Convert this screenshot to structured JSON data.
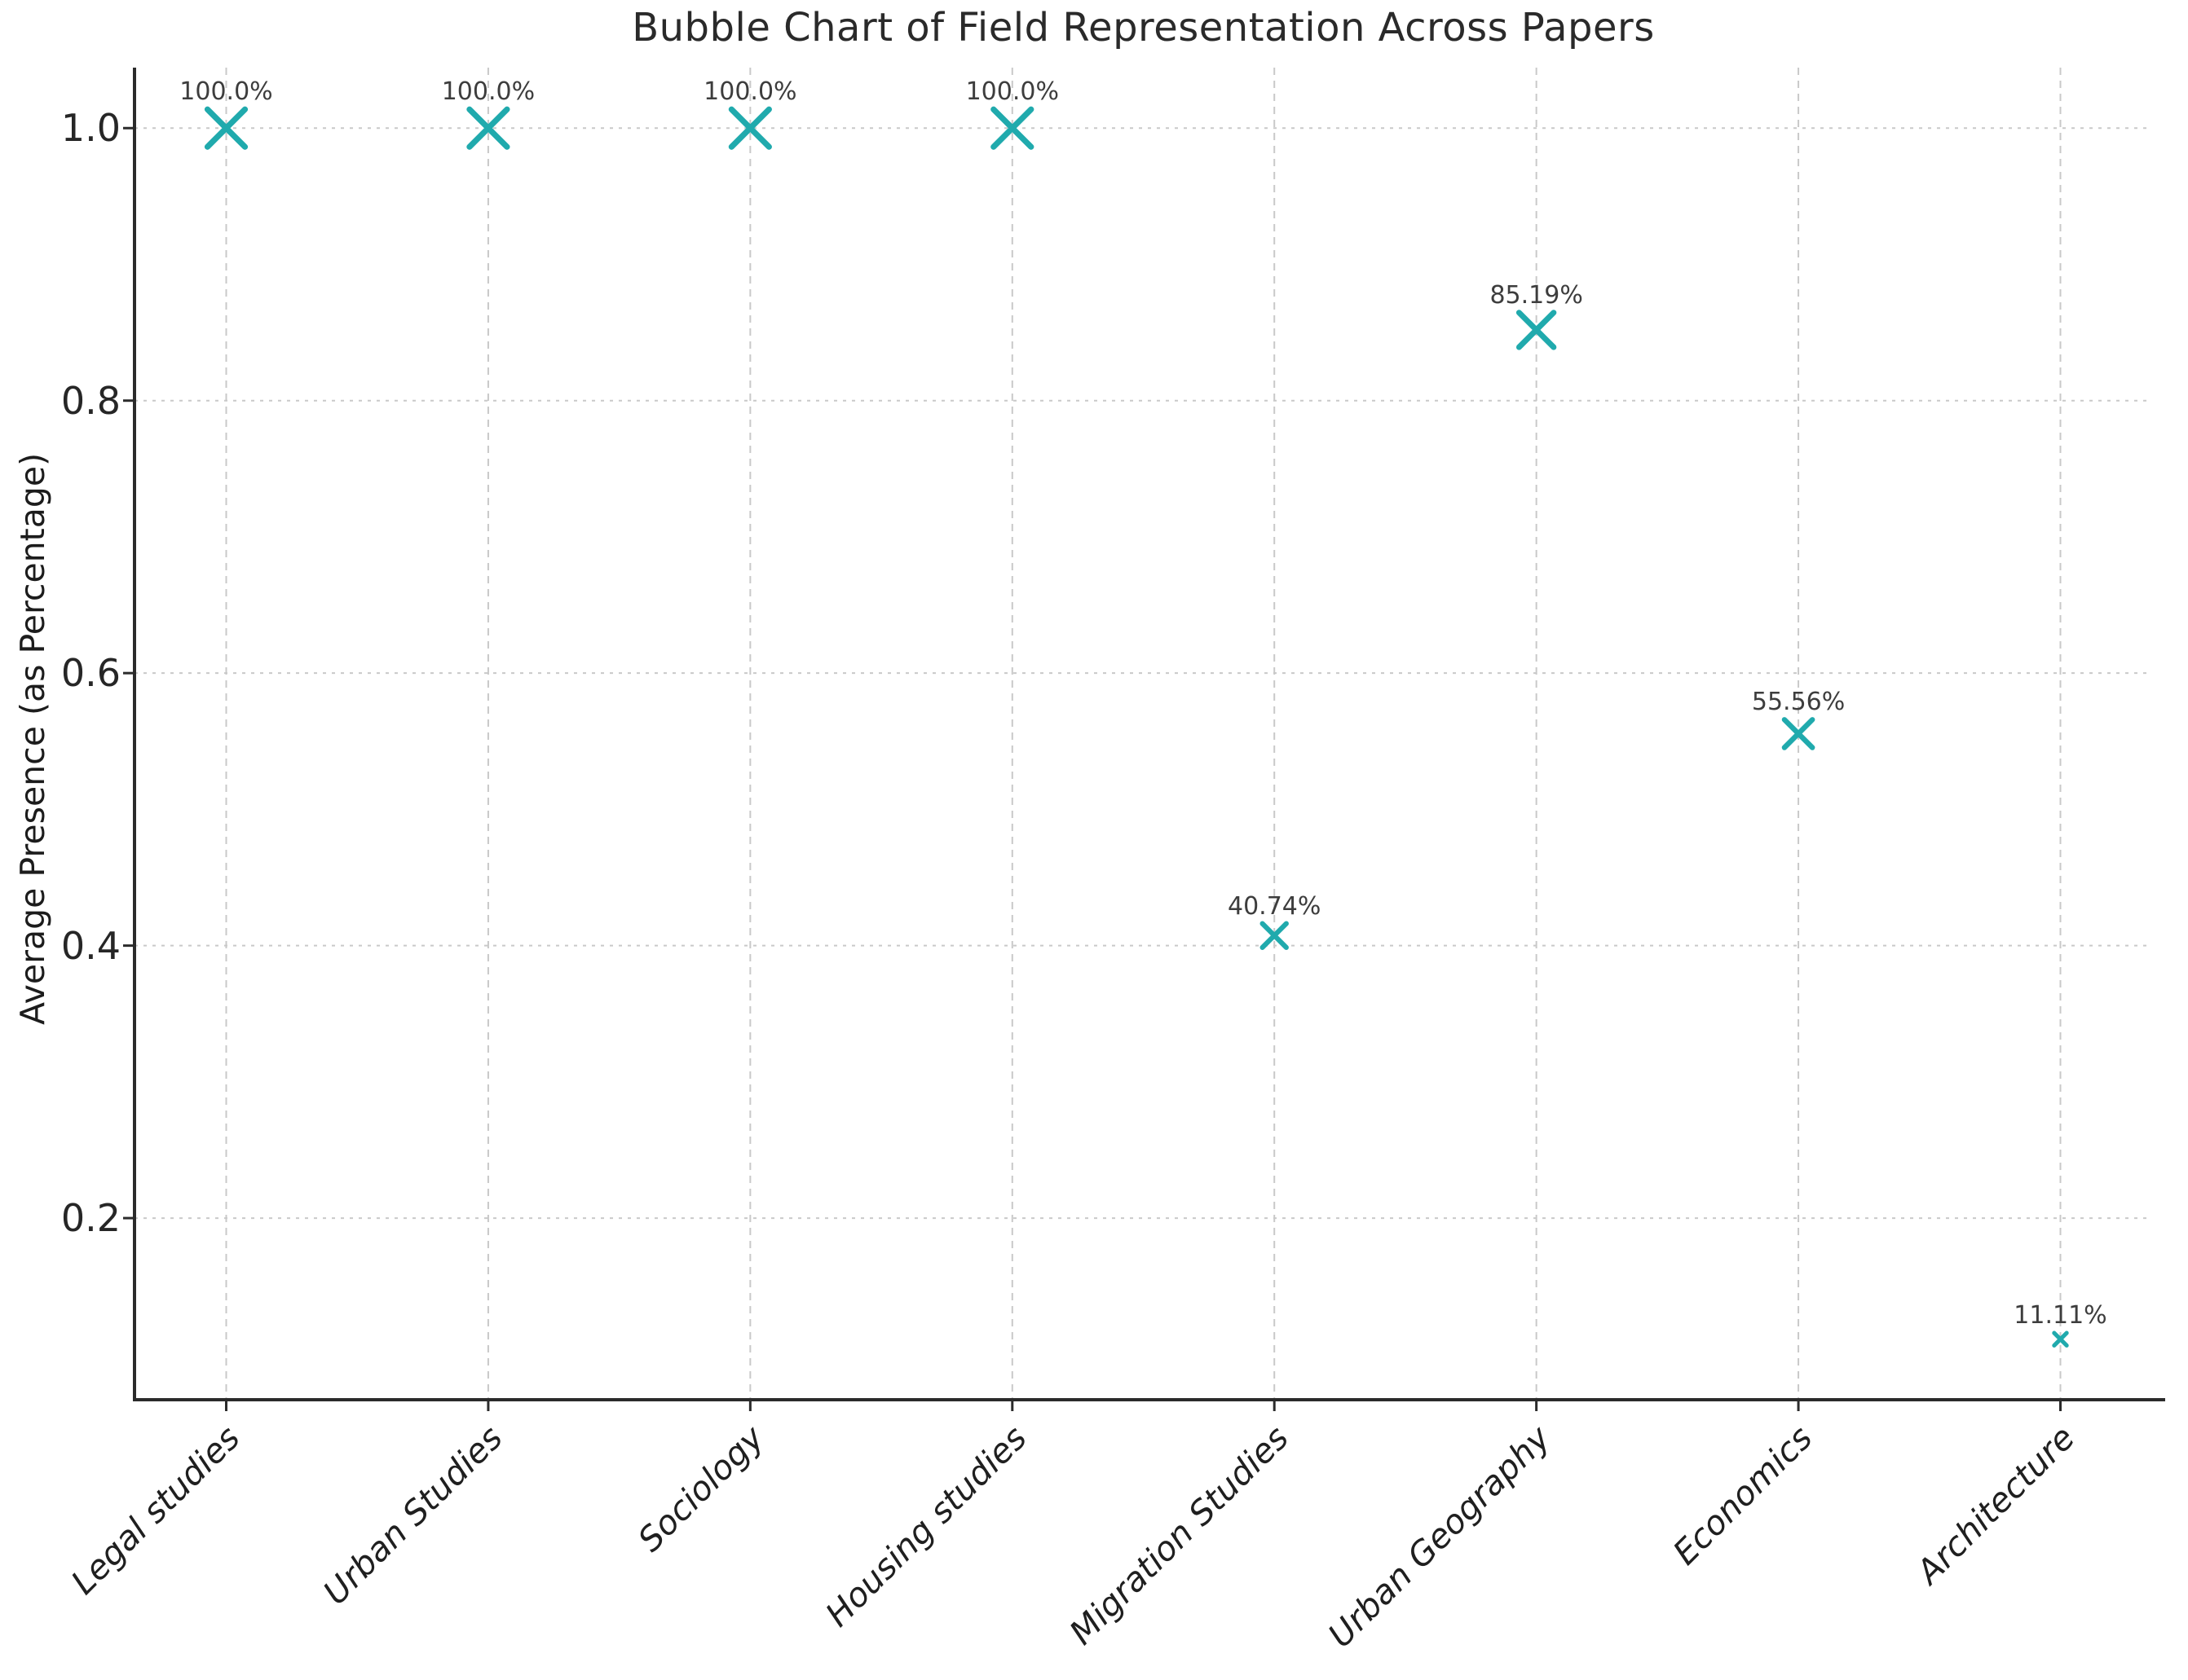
{
  "chart_data": {
    "type": "scatter",
    "title": "Bubble Chart of Field Representation Across Papers",
    "xlabel": "",
    "ylabel": "Average Presence (as Percentage)",
    "categories": [
      "Legal studies",
      "Urban Studies",
      "Sociology",
      "Housing studies",
      "Migration Studies",
      "Urban Geography",
      "Economics",
      "Architecture"
    ],
    "values": [
      1.0,
      1.0,
      1.0,
      1.0,
      0.4074,
      0.8519,
      0.5556,
      0.1111
    ],
    "point_labels": [
      "100.0%",
      "100.0%",
      "100.0%",
      "100.0%",
      "40.74%",
      "85.19%",
      "55.56%",
      "11.11%"
    ],
    "marker": "x",
    "bubble_size_scales_with_value": true,
    "yticks": [
      0.2,
      0.4,
      0.6,
      0.8,
      1.0
    ],
    "ytick_labels": [
      "0.2",
      "0.4",
      "0.6",
      "0.8",
      "1.0"
    ],
    "ylim": [
      0.0667,
      1.0444
    ],
    "grid": true,
    "grid_style": "dashed",
    "legend_position": "none",
    "colors": {
      "marker": "#20aaad",
      "grid": "#c9c9c9",
      "axis": "#2b2b2b",
      "annotation_text": "#3d3d3d",
      "tick_text": "#262626"
    }
  }
}
